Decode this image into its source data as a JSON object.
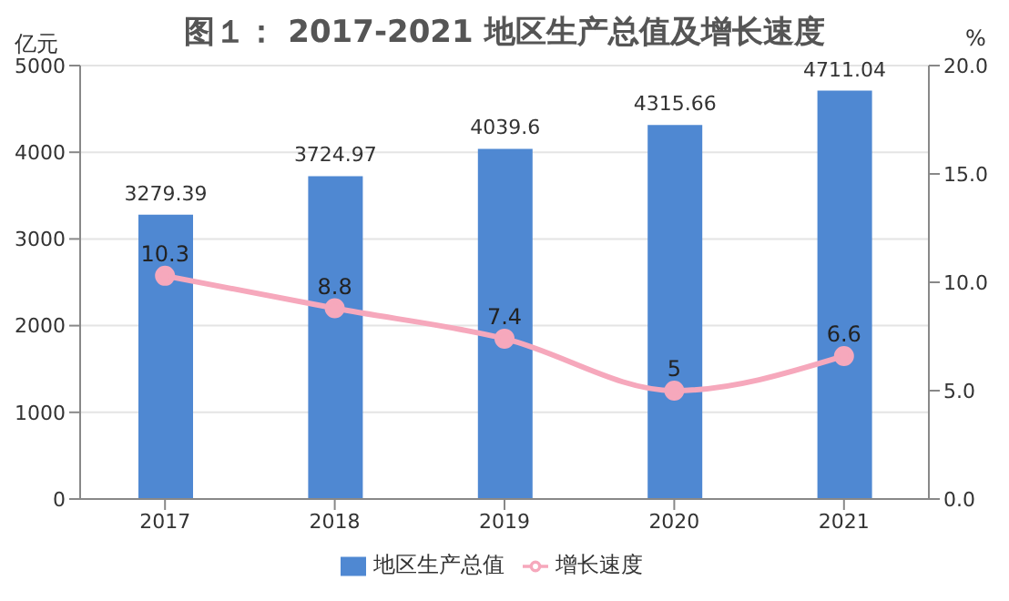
{
  "chart_data": {
    "type": "bar",
    "title": "图１： 2017-2021 地区生产总值及增长速度",
    "ylabel": "亿元",
    "y2label": "%",
    "categories": [
      "2017",
      "2018",
      "2019",
      "2020",
      "2021"
    ],
    "series": [
      {
        "name": "地区生产总值",
        "color": "#4f88d2",
        "values": [
          3279.39,
          3724.97,
          4039.6,
          4315.66,
          4711.04
        ]
      },
      {
        "name": "增长速度",
        "type": "line",
        "axis": "y2",
        "color": "#f6a8bc",
        "values": [
          10.3,
          8.8,
          7.4,
          5,
          6.6
        ]
      }
    ],
    "ylim": [
      0,
      5000
    ],
    "yticks": [
      0,
      1000,
      2000,
      3000,
      4000,
      5000
    ],
    "y2lim": [
      0,
      20
    ],
    "y2ticks": [
      {
        "value": 0,
        "label": "0.0"
      },
      {
        "value": 5,
        "label": "5.0"
      },
      {
        "value": 10,
        "label": "10.0"
      },
      {
        "value": 15,
        "label": "15.0"
      },
      {
        "value": 20,
        "label": "20.0"
      }
    ],
    "grid": "y",
    "legend": "bottom",
    "data_labels": true,
    "marker": "circle",
    "line_style": "solid"
  }
}
